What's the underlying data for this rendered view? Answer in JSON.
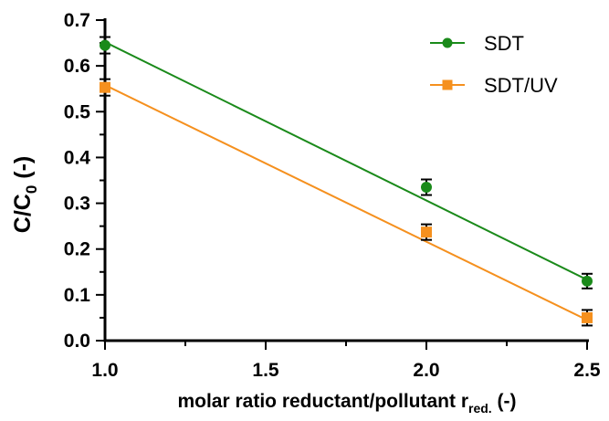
{
  "chart_data": {
    "type": "scatter",
    "xlabel": "molar ratio reductant/pollutant r",
    "xlabel_subscript": "red.",
    "xlabel_suffix": " (-)",
    "ylabel": "C/C",
    "ylabel_subscript": "0",
    "ylabel_suffix": " (-)",
    "xlim": [
      1.0,
      2.5
    ],
    "ylim": [
      0.0,
      0.7
    ],
    "x_ticks": [
      "1.0",
      "1.5",
      "2.0",
      "2.5"
    ],
    "y_ticks": [
      "0.0",
      "0.1",
      "0.2",
      "0.3",
      "0.4",
      "0.5",
      "0.6",
      "0.7"
    ],
    "grid": false,
    "legend": "top-right",
    "series": [
      {
        "name": "SDT",
        "color": "#1a8a1a",
        "marker": "circle",
        "x": [
          1.0,
          2.0,
          2.5
        ],
        "y": [
          0.645,
          0.335,
          0.13
        ],
        "yerr": [
          0.018,
          0.017,
          0.016
        ],
        "fit": {
          "x": [
            1.0,
            2.5
          ],
          "y": [
            0.652,
            0.133
          ]
        }
      },
      {
        "name": "SDT/UV",
        "color": "#f5901e",
        "marker": "square",
        "x": [
          1.0,
          2.0,
          2.5
        ],
        "y": [
          0.553,
          0.237,
          0.05
        ],
        "yerr": [
          0.018,
          0.017,
          0.017
        ],
        "fit": {
          "x": [
            1.0,
            2.5
          ],
          "y": [
            0.558,
            0.045
          ]
        }
      }
    ]
  }
}
